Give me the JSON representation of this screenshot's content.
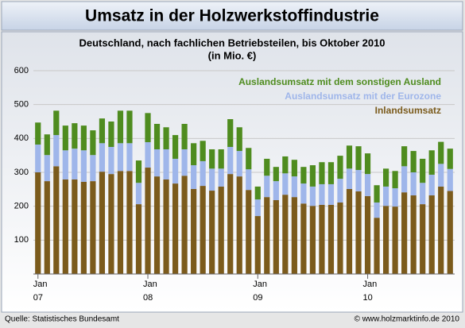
{
  "chart_data": {
    "type": "stacked_bar",
    "title": "Umsatz in der Holzwerkstoffindustrie",
    "subtitle": [
      "Deutschland, nach fachlichen Betriebsteilen, bis Oktober 2010",
      "(in Mio. €)"
    ],
    "categories": [
      "Jan",
      null,
      null,
      null,
      null,
      null,
      null,
      null,
      null,
      null,
      null,
      null,
      "Jan",
      null,
      null,
      null,
      null,
      null,
      null,
      null,
      null,
      null,
      null,
      null,
      "Jan",
      null,
      null,
      null,
      null,
      null,
      null,
      null,
      null,
      null,
      null,
      null,
      "Jan",
      null,
      null,
      null,
      null,
      null,
      null,
      null,
      null,
      null
    ],
    "category_years": [
      "07",
      "08",
      "09",
      "10"
    ],
    "series": [
      {
        "name": "Inlandsumsatz",
        "color": "#7b5b1c",
        "values": [
          300,
          274,
          318,
          279,
          279,
          272,
          274,
          302,
          295,
          304,
          304,
          206,
          314,
          288,
          279,
          267,
          290,
          251,
          260,
          246,
          258,
          295,
          288,
          248,
          171,
          227,
          218,
          234,
          227,
          208,
          201,
          204,
          204,
          211,
          251,
          244,
          230,
          166,
          201,
          199,
          241,
          232,
          206,
          232,
          258,
          245
        ]
      },
      {
        "name": "Auslandsumsatz mit der Eurozone",
        "color": "#9fb6ea",
        "values": [
          82,
          77,
          92,
          86,
          91,
          93,
          77,
          84,
          80,
          82,
          82,
          63,
          75,
          80,
          89,
          73,
          78,
          70,
          73,
          65,
          53,
          80,
          75,
          61,
          49,
          63,
          56,
          63,
          61,
          59,
          57,
          61,
          61,
          70,
          60,
          63,
          65,
          45,
          57,
          54,
          77,
          68,
          63,
          61,
          67,
          65
        ]
      },
      {
        "name": "Auslandsumsatz mit dem sonstigen Ausland",
        "color": "#4f8c1f",
        "values": [
          65,
          61,
          72,
          73,
          75,
          73,
          73,
          73,
          75,
          96,
          96,
          66,
          86,
          75,
          65,
          70,
          75,
          65,
          60,
          57,
          57,
          82,
          70,
          63,
          38,
          50,
          42,
          50,
          49,
          49,
          63,
          65,
          65,
          68,
          68,
          70,
          61,
          51,
          53,
          51,
          59,
          63,
          71,
          72,
          65,
          60
        ]
      }
    ],
    "ylim": [
      0,
      600
    ],
    "yticks": [
      100,
      200,
      300,
      400,
      500,
      600
    ],
    "grid": true,
    "source": "Quelle: Statistisches Bundesamt",
    "copyright": "© www.holzmarktinfo.de 2010"
  }
}
